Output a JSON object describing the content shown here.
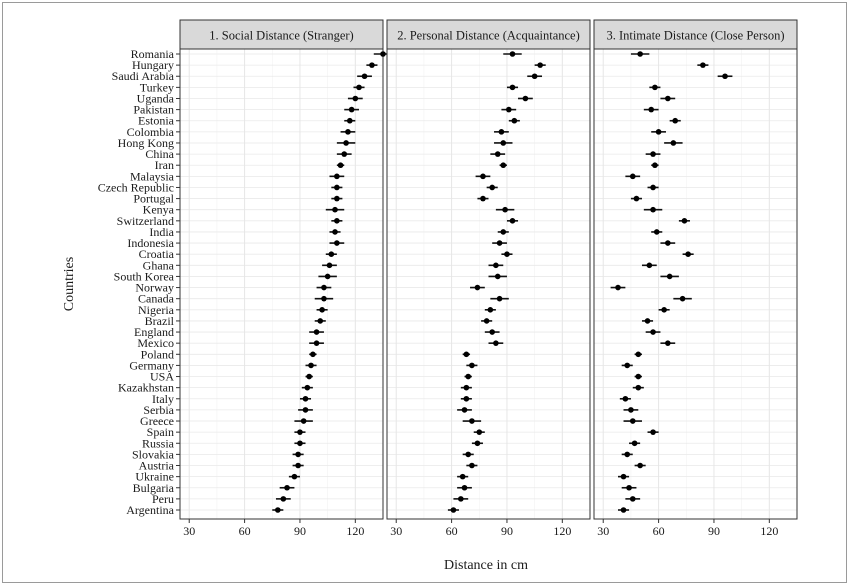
{
  "chart_data": {
    "type": "scatter",
    "subtype": "dot-with-error-bars, faceted",
    "xlabel": "Distance in cm",
    "ylabel": "Countries",
    "xlim": [
      25,
      135
    ],
    "xticks": [
      30,
      60,
      90,
      120
    ],
    "countries": [
      "Romania",
      "Hungary",
      "Saudi Arabia",
      "Turkey",
      "Uganda",
      "Pakistan",
      "Estonia",
      "Colombia",
      "Hong Kong",
      "China",
      "Iran",
      "Malaysia",
      "Czech Republic",
      "Portugal",
      "Kenya",
      "Switzerland",
      "India",
      "Indonesia",
      "Croatia",
      "Ghana",
      "South Korea",
      "Norway",
      "Canada",
      "Nigeria",
      "Brazil",
      "England",
      "Mexico",
      "Poland",
      "Germany",
      "USA",
      "Kazakhstan",
      "Italy",
      "Serbia",
      "Greece",
      "Spain",
      "Russia",
      "Slovakia",
      "Austria",
      "Ukraine",
      "Bulgaria",
      "Peru",
      "Argentina"
    ],
    "panels": [
      {
        "title": "1. Social Distance (Stranger)",
        "values": [
          135,
          129,
          125,
          122,
          120,
          118,
          117,
          116,
          115,
          114,
          112,
          110,
          110,
          110,
          109,
          110,
          109,
          110,
          107,
          106,
          105,
          103,
          103,
          102,
          101,
          99,
          99,
          97,
          96,
          95,
          94,
          93,
          93,
          92,
          90,
          90,
          89,
          89,
          87,
          83,
          81,
          78
        ],
        "errors": [
          5,
          3,
          4,
          3,
          4,
          4,
          3,
          4,
          5,
          4,
          2,
          4,
          3,
          3,
          5,
          3,
          3,
          4,
          3,
          4,
          5,
          4,
          5,
          3,
          3,
          4,
          4,
          2,
          3,
          2,
          3,
          3,
          4,
          5,
          3,
          3,
          3,
          3,
          3,
          4,
          4,
          3
        ]
      },
      {
        "title": "2. Personal Distance (Acquaintance)",
        "values": [
          93,
          108,
          105,
          93,
          100,
          91,
          94,
          87,
          88,
          85,
          88,
          77,
          82,
          77,
          89,
          93,
          88,
          86,
          90,
          84,
          85,
          74,
          86,
          81,
          79,
          82,
          84,
          68,
          71,
          69,
          68,
          68,
          67,
          71,
          75,
          74,
          69,
          71,
          66,
          67,
          65,
          61
        ]
      },
      {
        "title": "3. Intimate Distance (Close Person)",
        "values": [
          50,
          84,
          96,
          58,
          65,
          56,
          69,
          60,
          68,
          57,
          58,
          46,
          57,
          48,
          57,
          74,
          59,
          65,
          76,
          55,
          66,
          38,
          73,
          63,
          54,
          57,
          65,
          49,
          43,
          49,
          49,
          42,
          45,
          46,
          57,
          47,
          43,
          50,
          41,
          44,
          46,
          41
        ]
      }
    ]
  }
}
